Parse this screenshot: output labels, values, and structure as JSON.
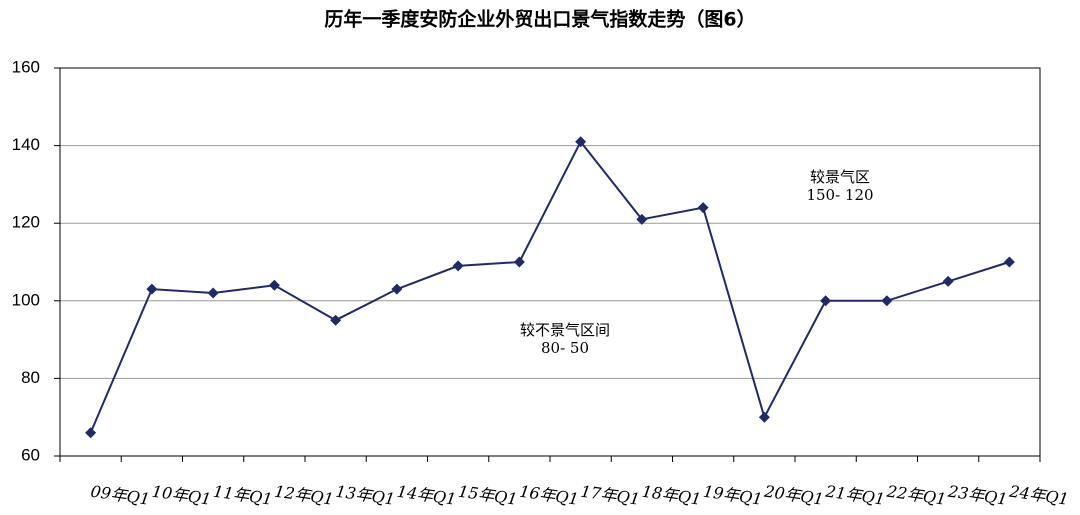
{
  "chart_data": {
    "type": "line",
    "title": "历年一季度安防企业外贸出口景气指数走势（图6）",
    "categories": [
      "09年Q1",
      "10年Q1",
      "11年Q1",
      "12年Q1",
      "13年Q1",
      "14年Q1",
      "15年Q1",
      "16年Q1",
      "17年Q1",
      "18年Q1",
      "19年Q1",
      "20年Q1",
      "21年Q1",
      "22年Q1",
      "23年Q1",
      "24年Q1"
    ],
    "values": [
      66,
      103,
      102,
      104,
      95,
      103,
      109,
      110,
      141,
      121,
      124,
      70,
      100,
      100,
      105,
      110
    ],
    "color": "#1f2a6b",
    "ylim": [
      60,
      160
    ],
    "yticks": [
      60,
      80,
      100,
      120,
      140,
      160
    ],
    "grid": true,
    "annotations": [
      {
        "lines": [
          "较景气区",
          "150- 120"
        ]
      },
      {
        "lines": [
          "较不景气区间",
          "80- 50"
        ]
      }
    ]
  }
}
